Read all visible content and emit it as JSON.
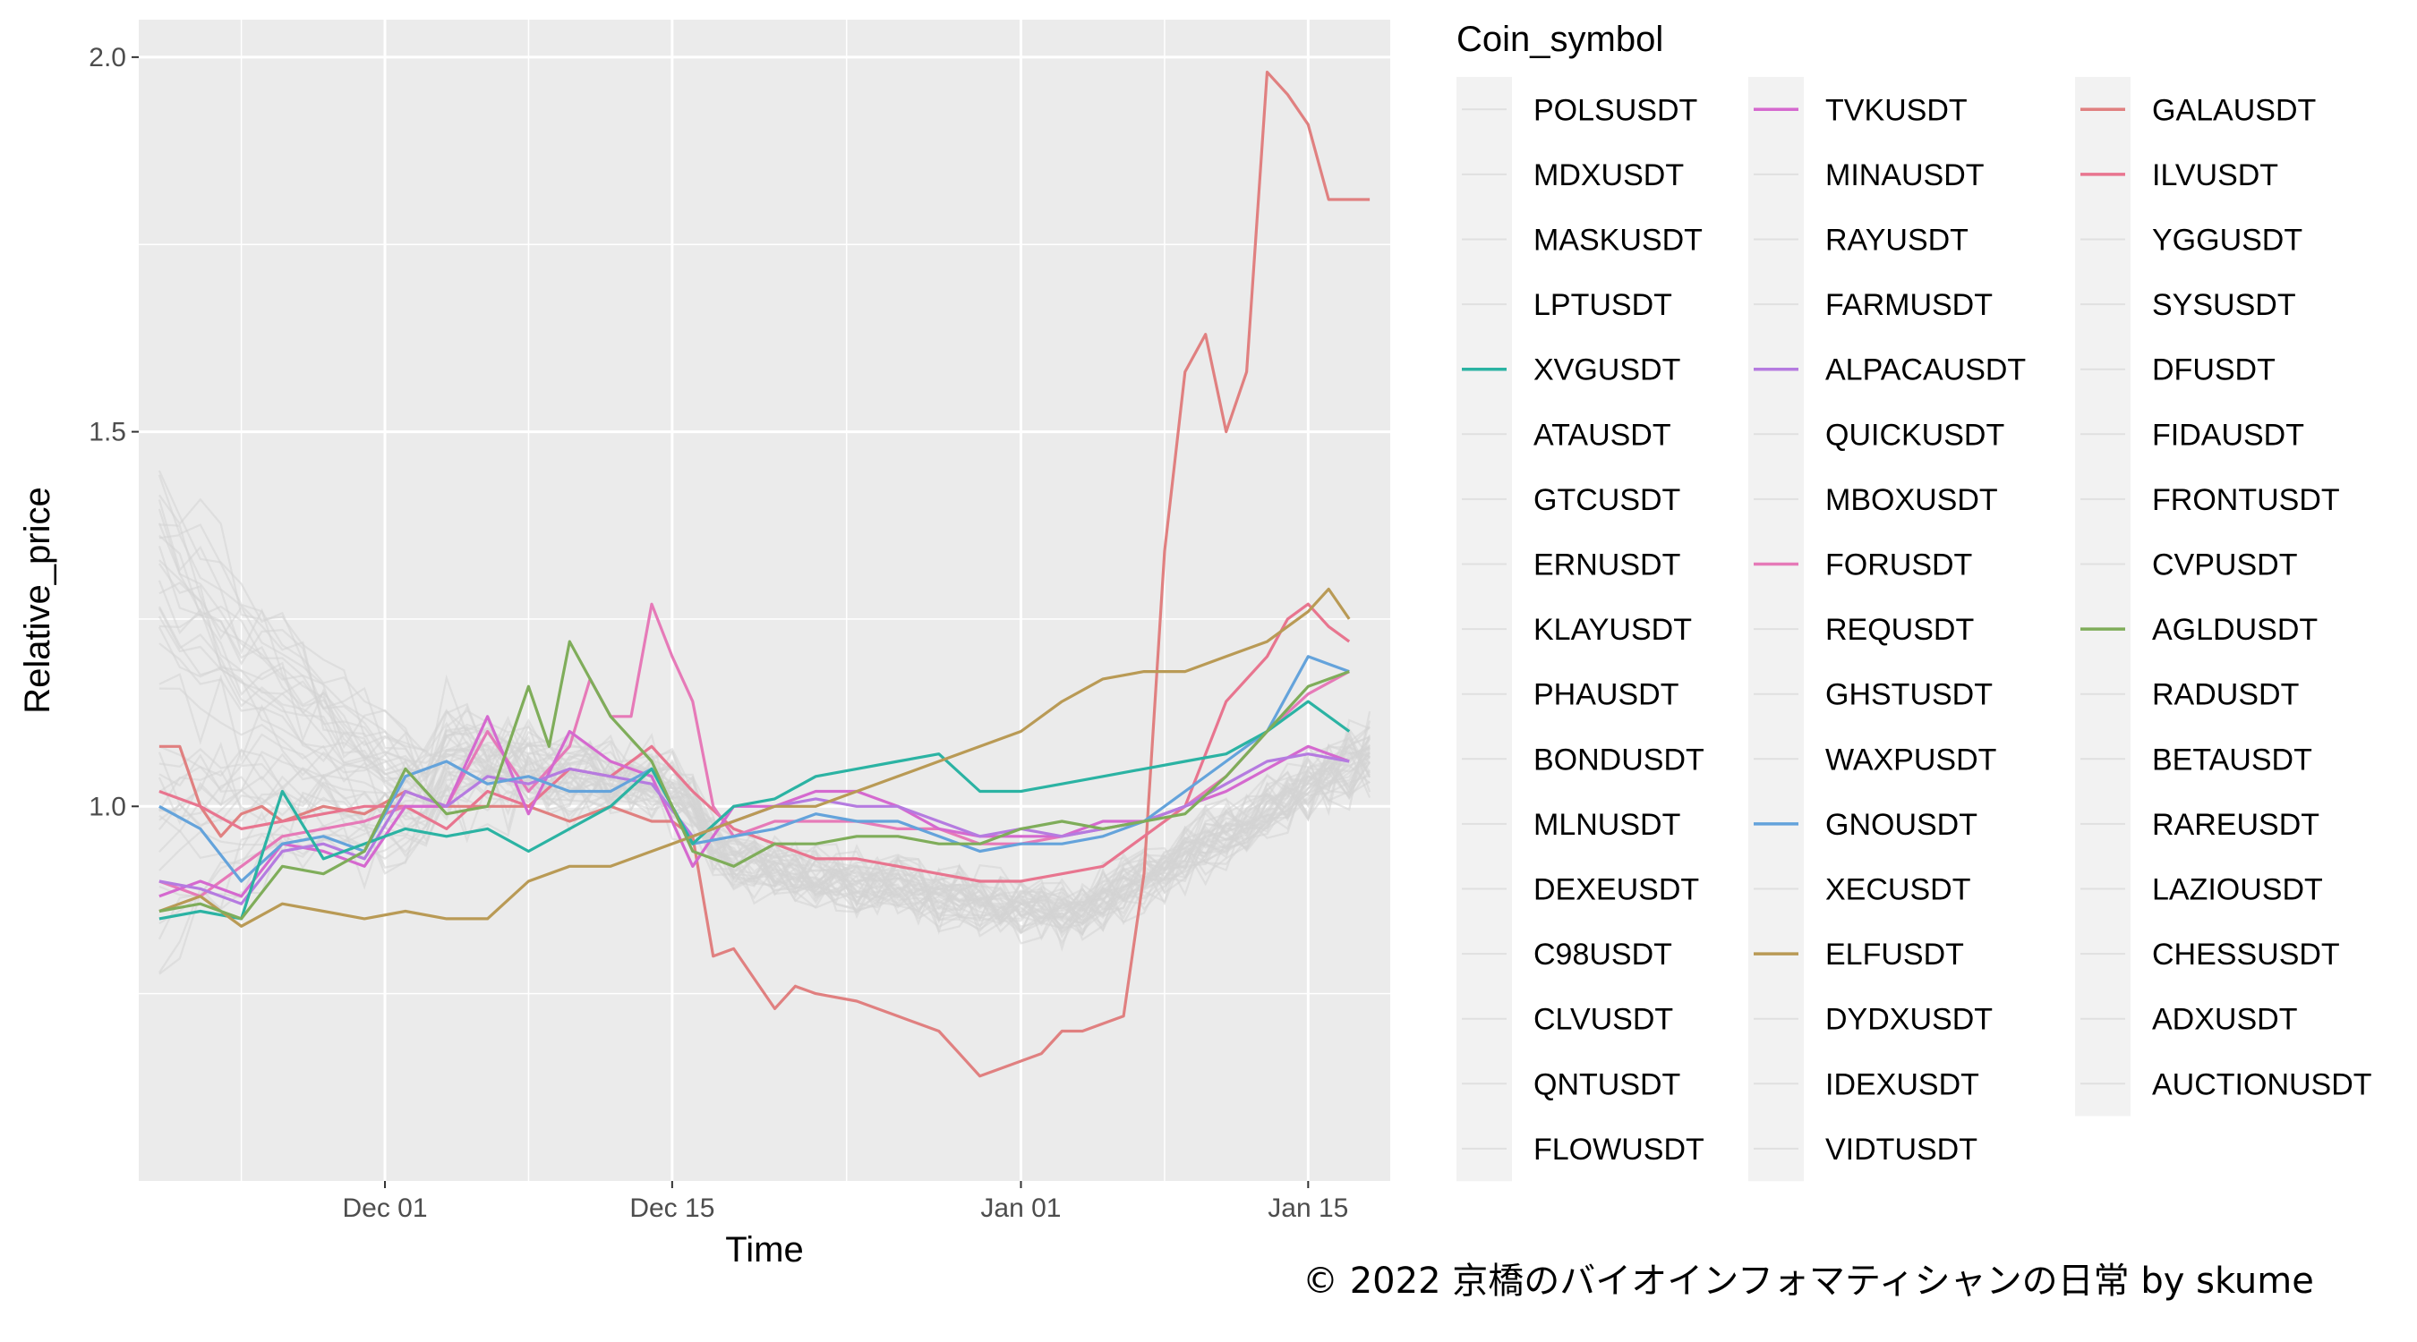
{
  "chart_data": {
    "type": "line",
    "xlabel": "Time",
    "ylabel": "Relative_price",
    "x_axis_type": "date",
    "x_range": [
      "2021-11-19",
      "2022-01-19"
    ],
    "x_ticks": [
      {
        "date": "2021-12-01",
        "label": "Dec 01"
      },
      {
        "date": "2021-12-15",
        "label": "Dec 15"
      },
      {
        "date": "2022-01-01",
        "label": "Jan 01"
      },
      {
        "date": "2022-01-15",
        "label": "Jan 15"
      }
    ],
    "ylim": [
      0.5,
      2.05
    ],
    "y_ticks": [
      1.0,
      1.5,
      2.0
    ],
    "y_tick_labels": [
      "1.0",
      "1.5",
      "2.0"
    ],
    "grid": true,
    "panel_background": "#ebebeb",
    "legend_title": "Coin_symbol",
    "legend_position": "right",
    "legend_columns": [
      [
        "POLSUSDT",
        "MDXUSDT",
        "MASKUSDT",
        "LPTUSDT",
        "XVGUSDT",
        "ATAUSDT",
        "GTCUSDT",
        "ERNUSDT",
        "KLAYUSDT",
        "PHAUSDT",
        "BONDUSDT",
        "MLNUSDT",
        "DEXEUSDT",
        "C98USDT",
        "CLVUSDT",
        "QNTUSDT",
        "FLOWUSDT"
      ],
      [
        "TVKUSDT",
        "MINAUSDT",
        "RAYUSDT",
        "FARMUSDT",
        "ALPACAUSDT",
        "QUICKUSDT",
        "MBOXUSDT",
        "FORUSDT",
        "REQUSDT",
        "GHSTUSDT",
        "WAXPUSDT",
        "GNOUSDT",
        "XECUSDT",
        "ELFUSDT",
        "DYDXUSDT",
        "IDEXUSDT",
        "VIDTUSDT"
      ],
      [
        "GALAUSDT",
        "ILVUSDT",
        "YGGUSDT",
        "SYSUSDT",
        "DFUSDT",
        "FIDAUSDT",
        "FRONTUSDT",
        "CVPUSDT",
        "AGLDUSDT",
        "RADUSDT",
        "BETAUSDT",
        "RAREUSDT",
        "LAZIOUSDT",
        "CHESSUSDT",
        "ADXUSDT",
        "AUCTIONUSDT"
      ]
    ],
    "highlight_colors": {
      "XVGUSDT": "#2bb3a3",
      "TVKUSDT": "#d569cf",
      "ALPACAUSDT": "#b57be0",
      "FORUSDT": "#e67ab8",
      "GNOUSDT": "#64a3db",
      "ELFUSDT": "#b99a55",
      "GALAUSDT": "#e08080",
      "ILVUSDT": "#e8758f",
      "AGLDUSDT": "#7fad5a"
    },
    "background_series_color": "#d3d3d3",
    "series": [
      {
        "name": "GALAUSDT",
        "x": [
          "2021-11-20",
          "2021-11-21",
          "2021-11-22",
          "2021-11-23",
          "2021-11-24",
          "2021-11-25",
          "2021-11-26",
          "2021-11-28",
          "2021-11-30",
          "2021-12-02",
          "2021-12-04",
          "2021-12-06",
          "2021-12-08",
          "2021-12-10",
          "2021-12-12",
          "2021-12-14",
          "2021-12-15",
          "2021-12-16",
          "2021-12-17",
          "2021-12-18",
          "2021-12-19",
          "2021-12-20",
          "2021-12-21",
          "2021-12-22",
          "2021-12-24",
          "2021-12-26",
          "2021-12-28",
          "2021-12-29",
          "2021-12-30",
          "2021-12-31",
          "2022-01-01",
          "2022-01-02",
          "2022-01-03",
          "2022-01-04",
          "2022-01-05",
          "2022-01-06",
          "2022-01-07",
          "2022-01-08",
          "2022-01-09",
          "2022-01-10",
          "2022-01-11",
          "2022-01-12",
          "2022-01-13",
          "2022-01-14",
          "2022-01-15",
          "2022-01-16",
          "2022-01-17",
          "2022-01-18"
        ],
        "values": [
          1.08,
          1.08,
          1.0,
          0.96,
          0.99,
          1.0,
          0.98,
          1.0,
          0.99,
          1.02,
          1.0,
          1.0,
          1.0,
          0.98,
          1.0,
          0.98,
          0.98,
          0.96,
          0.8,
          0.81,
          0.77,
          0.73,
          0.76,
          0.75,
          0.74,
          0.72,
          0.7,
          0.67,
          0.64,
          0.65,
          0.66,
          0.67,
          0.7,
          0.7,
          0.71,
          0.72,
          0.91,
          1.34,
          1.58,
          1.63,
          1.5,
          1.58,
          1.98,
          1.95,
          1.91,
          1.81,
          1.81,
          1.81
        ]
      },
      {
        "name": "ILVUSDT",
        "x": [
          "2021-11-20",
          "2021-11-22",
          "2021-11-24",
          "2021-11-26",
          "2021-11-28",
          "2021-11-30",
          "2021-12-02",
          "2021-12-04",
          "2021-12-06",
          "2021-12-08",
          "2021-12-10",
          "2021-12-12",
          "2021-12-14",
          "2021-12-16",
          "2021-12-18",
          "2021-12-20",
          "2021-12-22",
          "2021-12-24",
          "2021-12-26",
          "2021-12-28",
          "2021-12-30",
          "2022-01-01",
          "2022-01-03",
          "2022-01-05",
          "2022-01-07",
          "2022-01-09",
          "2022-01-11",
          "2022-01-13",
          "2022-01-14",
          "2022-01-15",
          "2022-01-16",
          "2022-01-17"
        ],
        "values": [
          1.02,
          1.0,
          0.97,
          0.98,
          0.99,
          1.0,
          1.0,
          0.97,
          1.02,
          1.0,
          1.05,
          1.04,
          1.08,
          1.02,
          0.97,
          0.95,
          0.93,
          0.93,
          0.92,
          0.91,
          0.9,
          0.9,
          0.91,
          0.92,
          0.96,
          1.0,
          1.14,
          1.2,
          1.25,
          1.27,
          1.24,
          1.22
        ]
      },
      {
        "name": "FORUSDT",
        "x": [
          "2021-11-20",
          "2021-11-22",
          "2021-11-24",
          "2021-11-26",
          "2021-11-28",
          "2021-11-30",
          "2021-12-02",
          "2021-12-04",
          "2021-12-06",
          "2021-12-08",
          "2021-12-10",
          "2021-12-11",
          "2021-12-12",
          "2021-12-13",
          "2021-12-14",
          "2021-12-15",
          "2021-12-16",
          "2021-12-17",
          "2021-12-18",
          "2021-12-20",
          "2021-12-22",
          "2021-12-24",
          "2021-12-26",
          "2021-12-28",
          "2021-12-30",
          "2022-01-01",
          "2022-01-03",
          "2022-01-05",
          "2022-01-07",
          "2022-01-09",
          "2022-01-11",
          "2022-01-13",
          "2022-01-15",
          "2022-01-17"
        ],
        "values": [
          0.9,
          0.88,
          0.92,
          0.96,
          0.97,
          0.98,
          1.0,
          1.0,
          1.1,
          1.02,
          1.08,
          1.17,
          1.12,
          1.12,
          1.27,
          1.2,
          1.14,
          1.0,
          0.96,
          0.98,
          0.98,
          0.98,
          0.97,
          0.97,
          0.95,
          0.95,
          0.96,
          0.97,
          0.98,
          1.0,
          1.04,
          1.1,
          1.15,
          1.18
        ]
      },
      {
        "name": "TVKUSDT",
        "x": [
          "2021-11-20",
          "2021-11-22",
          "2021-11-24",
          "2021-11-26",
          "2021-11-28",
          "2021-11-30",
          "2021-12-02",
          "2021-12-04",
          "2021-12-06",
          "2021-12-08",
          "2021-12-10",
          "2021-12-12",
          "2021-12-14",
          "2021-12-16",
          "2021-12-18",
          "2021-12-20",
          "2021-12-22",
          "2021-12-24",
          "2021-12-26",
          "2021-12-28",
          "2021-12-30",
          "2022-01-01",
          "2022-01-03",
          "2022-01-05",
          "2022-01-07",
          "2022-01-09",
          "2022-01-11",
          "2022-01-13",
          "2022-01-15",
          "2022-01-17"
        ],
        "values": [
          0.88,
          0.9,
          0.88,
          0.95,
          0.94,
          0.92,
          1.0,
          1.0,
          1.12,
          0.99,
          1.1,
          1.06,
          1.04,
          0.92,
          1.0,
          1.0,
          1.02,
          1.02,
          1.0,
          0.97,
          0.96,
          0.96,
          0.96,
          0.98,
          0.98,
          1.0,
          1.02,
          1.05,
          1.08,
          1.06
        ]
      },
      {
        "name": "ALPACAUSDT",
        "x": [
          "2021-11-20",
          "2021-11-22",
          "2021-11-24",
          "2021-11-26",
          "2021-11-28",
          "2021-11-30",
          "2021-12-02",
          "2021-12-04",
          "2021-12-06",
          "2021-12-08",
          "2021-12-10",
          "2021-12-12",
          "2021-12-14",
          "2021-12-16",
          "2021-12-18",
          "2021-12-20",
          "2021-12-22",
          "2021-12-24",
          "2021-12-26",
          "2021-12-28",
          "2021-12-30",
          "2022-01-01",
          "2022-01-03",
          "2022-01-05",
          "2022-01-07",
          "2022-01-09",
          "2022-01-11",
          "2022-01-13",
          "2022-01-15",
          "2022-01-17"
        ],
        "values": [
          0.9,
          0.89,
          0.87,
          0.94,
          0.95,
          0.93,
          1.02,
          1.0,
          1.04,
          1.03,
          1.05,
          1.04,
          1.03,
          0.96,
          0.98,
          1.0,
          1.01,
          1.0,
          1.0,
          0.98,
          0.96,
          0.97,
          0.96,
          0.97,
          0.98,
          1.0,
          1.03,
          1.06,
          1.07,
          1.06
        ]
      },
      {
        "name": "GNOUSDT",
        "x": [
          "2021-11-20",
          "2021-11-22",
          "2021-11-24",
          "2021-11-26",
          "2021-11-28",
          "2021-11-30",
          "2021-12-02",
          "2021-12-04",
          "2021-12-06",
          "2021-12-08",
          "2021-12-10",
          "2021-12-12",
          "2021-12-14",
          "2021-12-16",
          "2021-12-18",
          "2021-12-20",
          "2021-12-22",
          "2021-12-24",
          "2021-12-26",
          "2021-12-28",
          "2021-12-30",
          "2022-01-01",
          "2022-01-03",
          "2022-01-05",
          "2022-01-07",
          "2022-01-09",
          "2022-01-11",
          "2022-01-13",
          "2022-01-15",
          "2022-01-16",
          "2022-01-17"
        ],
        "values": [
          1.0,
          0.97,
          0.9,
          0.95,
          0.96,
          0.94,
          1.04,
          1.06,
          1.03,
          1.04,
          1.02,
          1.02,
          1.05,
          0.95,
          0.96,
          0.97,
          0.99,
          0.98,
          0.98,
          0.96,
          0.94,
          0.95,
          0.95,
          0.96,
          0.98,
          1.02,
          1.06,
          1.1,
          1.2,
          1.19,
          1.18
        ]
      },
      {
        "name": "XVGUSDT",
        "x": [
          "2021-11-20",
          "2021-11-22",
          "2021-11-24",
          "2021-11-26",
          "2021-11-28",
          "2021-11-30",
          "2021-12-02",
          "2021-12-04",
          "2021-12-06",
          "2021-12-08",
          "2021-12-10",
          "2021-12-12",
          "2021-12-14",
          "2021-12-16",
          "2021-12-18",
          "2021-12-20",
          "2021-12-22",
          "2021-12-24",
          "2021-12-26",
          "2021-12-28",
          "2021-12-30",
          "2022-01-01",
          "2022-01-03",
          "2022-01-05",
          "2022-01-07",
          "2022-01-09",
          "2022-01-11",
          "2022-01-13",
          "2022-01-15",
          "2022-01-17"
        ],
        "values": [
          0.85,
          0.86,
          0.85,
          1.02,
          0.93,
          0.95,
          0.97,
          0.96,
          0.97,
          0.94,
          0.97,
          1.0,
          1.05,
          0.95,
          1.0,
          1.01,
          1.04,
          1.05,
          1.06,
          1.07,
          1.02,
          1.02,
          1.03,
          1.04,
          1.05,
          1.06,
          1.07,
          1.1,
          1.14,
          1.1
        ]
      },
      {
        "name": "ELFUSDT",
        "x": [
          "2021-11-20",
          "2021-11-22",
          "2021-11-24",
          "2021-11-26",
          "2021-11-28",
          "2021-11-30",
          "2021-12-02",
          "2021-12-04",
          "2021-12-06",
          "2021-12-08",
          "2021-12-10",
          "2021-12-12",
          "2021-12-14",
          "2021-12-16",
          "2021-12-18",
          "2021-12-20",
          "2021-12-22",
          "2021-12-24",
          "2021-12-26",
          "2021-12-28",
          "2021-12-30",
          "2022-01-01",
          "2022-01-03",
          "2022-01-05",
          "2022-01-07",
          "2022-01-09",
          "2022-01-11",
          "2022-01-13",
          "2022-01-15",
          "2022-01-16",
          "2022-01-17"
        ],
        "values": [
          0.86,
          0.88,
          0.84,
          0.87,
          0.86,
          0.85,
          0.86,
          0.85,
          0.85,
          0.9,
          0.92,
          0.92,
          0.94,
          0.96,
          0.98,
          1.0,
          1.0,
          1.02,
          1.04,
          1.06,
          1.08,
          1.1,
          1.14,
          1.17,
          1.18,
          1.18,
          1.2,
          1.22,
          1.26,
          1.29,
          1.25
        ]
      },
      {
        "name": "AGLDUSDT",
        "x": [
          "2021-11-20",
          "2021-11-22",
          "2021-11-24",
          "2021-11-26",
          "2021-11-28",
          "2021-11-30",
          "2021-12-02",
          "2021-12-04",
          "2021-12-06",
          "2021-12-08",
          "2021-12-09",
          "2021-12-10",
          "2021-12-12",
          "2021-12-14",
          "2021-12-16",
          "2021-12-18",
          "2021-12-20",
          "2021-12-22",
          "2021-12-24",
          "2021-12-26",
          "2021-12-28",
          "2021-12-30",
          "2022-01-01",
          "2022-01-03",
          "2022-01-05",
          "2022-01-07",
          "2022-01-09",
          "2022-01-11",
          "2022-01-13",
          "2022-01-15",
          "2022-01-17"
        ],
        "values": [
          0.86,
          0.87,
          0.85,
          0.92,
          0.91,
          0.94,
          1.05,
          0.99,
          1.0,
          1.16,
          1.08,
          1.22,
          1.12,
          1.06,
          0.94,
          0.92,
          0.95,
          0.95,
          0.96,
          0.96,
          0.95,
          0.95,
          0.97,
          0.98,
          0.97,
          0.98,
          0.99,
          1.04,
          1.1,
          1.16,
          1.18
        ]
      }
    ]
  },
  "caption": "© 2022 京橋のバイオインフォマティシャンの日常 by skume"
}
